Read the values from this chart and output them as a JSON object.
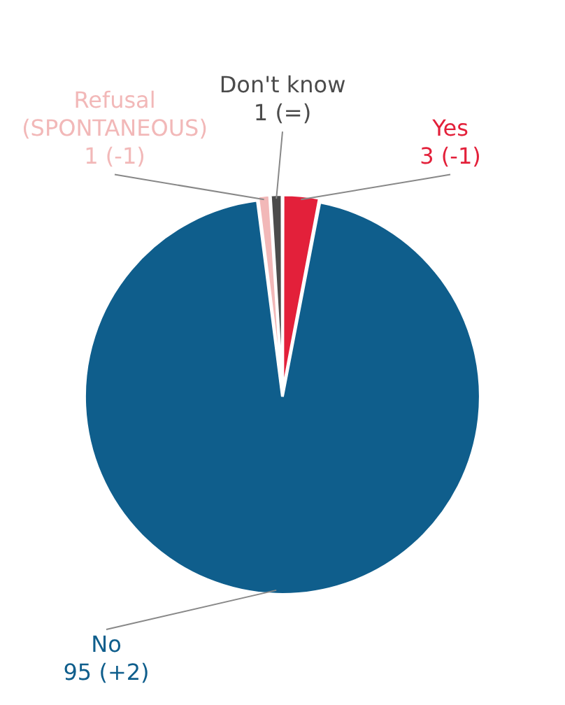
{
  "chart_data": {
    "type": "pie",
    "categories": [
      "Yes",
      "No",
      "Refusal (SPONTANEOUS)",
      "Don't know"
    ],
    "values": [
      3,
      95,
      1,
      1
    ],
    "colors": [
      "#e3203a",
      "#0f5e8c",
      "#f2b8b8",
      "#4b4b4b"
    ],
    "value_labels": [
      "3 (-1)",
      "95 (+2)",
      "1 (-1)",
      "1 (=)"
    ],
    "legend": false
  }
}
